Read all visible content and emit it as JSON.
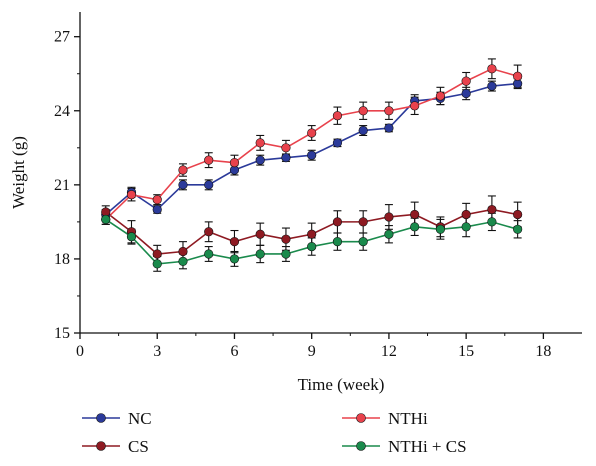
{
  "chart_data": {
    "type": "line",
    "title": "",
    "xlabel": "Time (week)",
    "ylabel": "Weight (g)",
    "xlim": [
      0,
      19.5
    ],
    "ylim": [
      15,
      28
    ],
    "xticks": [
      0,
      3,
      6,
      9,
      12,
      15,
      18
    ],
    "yticks": [
      15,
      18,
      21,
      24,
      27
    ],
    "grid": false,
    "legend_position": "bottom",
    "x": [
      1,
      2,
      3,
      4,
      5,
      6,
      7,
      8,
      9,
      10,
      11,
      12,
      13,
      14,
      15,
      16,
      17
    ],
    "series": [
      {
        "name": "NC",
        "color": "#2b3a9a",
        "values": [
          19.8,
          20.7,
          20.0,
          21.0,
          21.0,
          21.6,
          22.0,
          22.1,
          22.2,
          22.7,
          23.2,
          23.3,
          24.4,
          24.5,
          24.7,
          25.0,
          25.1
        ],
        "errors": [
          0.2,
          0.2,
          0.15,
          0.2,
          0.2,
          0.2,
          0.2,
          0.15,
          0.2,
          0.15,
          0.2,
          0.15,
          0.25,
          0.25,
          0.25,
          0.2,
          0.2
        ]
      },
      {
        "name": "CS",
        "color": "#8e1a22",
        "values": [
          19.9,
          19.1,
          18.2,
          18.3,
          19.1,
          18.7,
          19.0,
          18.8,
          19.0,
          19.5,
          19.5,
          19.7,
          19.8,
          19.3,
          19.8,
          20.0,
          19.8
        ],
        "errors": [
          0.25,
          0.45,
          0.35,
          0.4,
          0.4,
          0.45,
          0.45,
          0.45,
          0.45,
          0.45,
          0.45,
          0.5,
          0.5,
          0.4,
          0.45,
          0.55,
          0.5
        ]
      },
      {
        "name": "NTHi",
        "color": "#e8424c",
        "values": [
          19.6,
          20.6,
          20.4,
          21.6,
          22.0,
          21.9,
          22.7,
          22.5,
          23.1,
          23.8,
          24.0,
          24.0,
          24.2,
          24.6,
          25.2,
          25.7,
          25.4
        ],
        "errors": [
          0.2,
          0.25,
          0.2,
          0.25,
          0.3,
          0.3,
          0.3,
          0.3,
          0.3,
          0.35,
          0.35,
          0.35,
          0.35,
          0.35,
          0.35,
          0.4,
          0.45
        ]
      },
      {
        "name": "NTHi + CS",
        "color": "#1a8a4c",
        "values": [
          19.6,
          18.9,
          17.8,
          17.9,
          18.2,
          18.0,
          18.2,
          18.2,
          18.5,
          18.7,
          18.7,
          19.0,
          19.3,
          19.2,
          19.3,
          19.5,
          19.2
        ],
        "errors": [
          0.2,
          0.3,
          0.3,
          0.3,
          0.3,
          0.3,
          0.35,
          0.3,
          0.35,
          0.35,
          0.35,
          0.35,
          0.35,
          0.4,
          0.4,
          0.35,
          0.35
        ]
      }
    ]
  }
}
